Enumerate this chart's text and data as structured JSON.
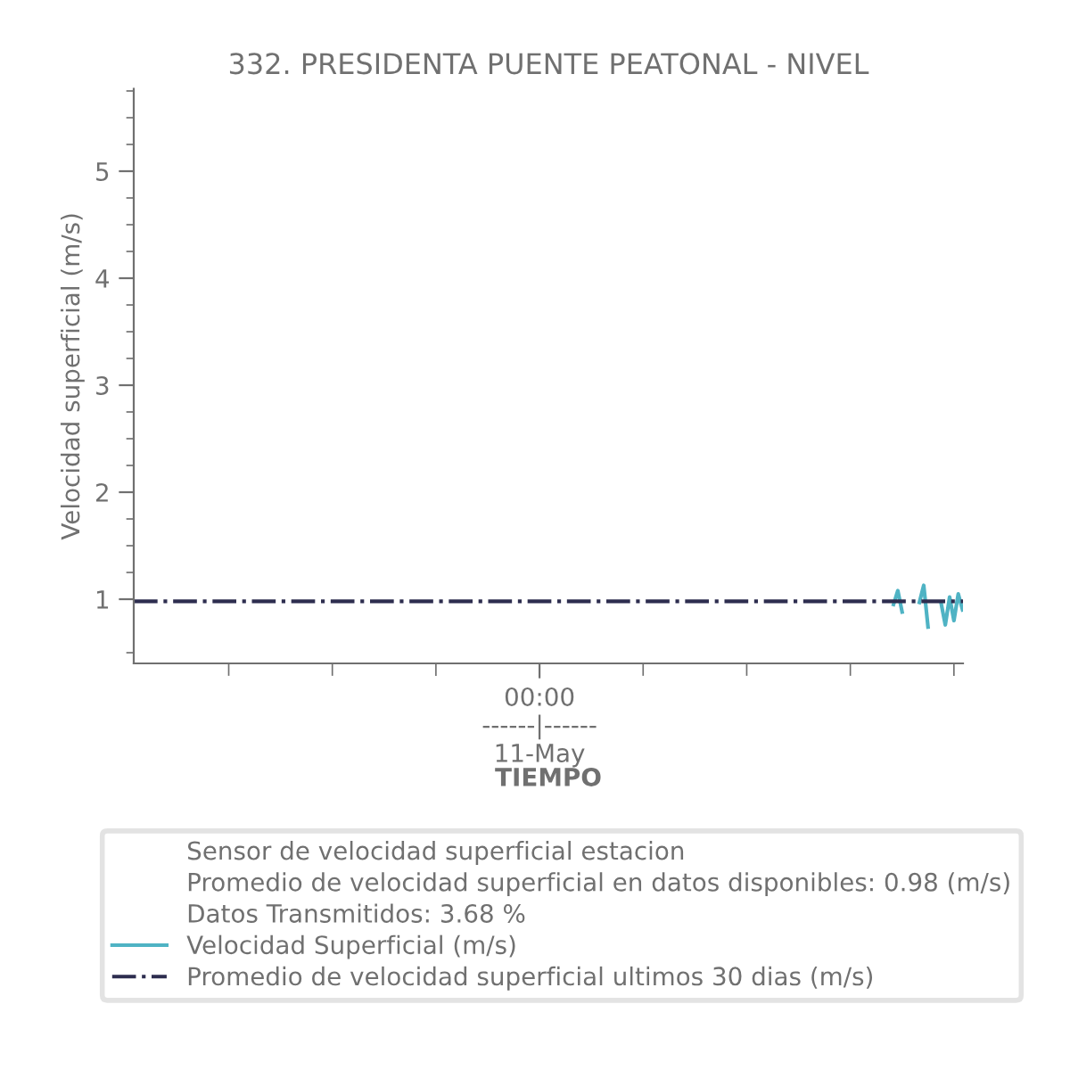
{
  "chart_data": {
    "type": "line",
    "title": "332. PRESIDENTA PUENTE PEATONAL - NIVEL",
    "xlabel": "TIEMPO",
    "ylabel": "Velocidad superficial (m/s)",
    "annotations": [
      "Sensor de velocidad superficial estacion",
      "Promedio de velocidad superficial en datos disponibles: 0.98 (m/s)",
      "Datos Transmitidos: 3.68 %"
    ],
    "categories": [
      null,
      null,
      null,
      null,
      null,
      null,
      null,
      null,
      null,
      null,
      null,
      null,
      null,
      null,
      null,
      null,
      null,
      null,
      null,
      null,
      null,
      null,
      null,
      null,
      null,
      null,
      null,
      null,
      null,
      null,
      null,
      null,
      null,
      null,
      null,
      null,
      null,
      null,
      null,
      null,
      null,
      null,
      null,
      null,
      null,
      null,
      null,
      null,
      null,
      null,
      null,
      null,
      null,
      null,
      null,
      null,
      null,
      null,
      null,
      null,
      null,
      null,
      null,
      null,
      null,
      null,
      null,
      null,
      null,
      null,
      null,
      null,
      null,
      null,
      null,
      null,
      null,
      null,
      null,
      null,
      null,
      null,
      null,
      null,
      null,
      null,
      null,
      null,
      null,
      null,
      null,
      null,
      null,
      null,
      "00:00\n------|------\n11-May",
      null,
      null,
      null,
      null,
      null,
      null,
      null,
      null,
      null,
      null,
      null,
      null,
      null,
      null,
      null,
      null,
      null,
      null,
      null,
      null,
      null,
      null,
      null,
      null,
      null,
      null,
      null,
      null,
      null,
      null,
      null,
      null,
      null,
      null,
      null,
      null,
      null,
      null,
      null,
      null,
      null,
      null,
      null,
      null,
      null,
      null,
      null,
      null,
      null,
      null,
      null,
      null,
      null,
      null,
      null,
      null,
      null,
      null,
      null,
      null,
      null,
      null,
      null,
      null,
      null,
      null,
      null,
      null,
      null,
      null,
      null,
      null,
      null,
      null,
      null,
      null,
      null,
      null,
      null,
      null,
      null,
      null,
      null,
      null,
      null,
      null,
      null,
      null,
      null,
      null,
      null,
      null,
      null,
      null,
      null,
      null,
      null,
      null
    ],
    "series": [
      {
        "name": "Velocidad Superficial (m/s)",
        "color": "#4fb3c4",
        "values": [
          null,
          null,
          null,
          null,
          null,
          null,
          null,
          null,
          null,
          null,
          null,
          null,
          null,
          null,
          null,
          null,
          null,
          null,
          null,
          null,
          null,
          null,
          null,
          null,
          null,
          null,
          null,
          null,
          null,
          null,
          null,
          null,
          null,
          null,
          null,
          null,
          null,
          null,
          null,
          null,
          null,
          null,
          null,
          null,
          null,
          null,
          null,
          null,
          null,
          null,
          null,
          null,
          null,
          null,
          null,
          null,
          null,
          null,
          null,
          null,
          null,
          null,
          null,
          null,
          null,
          null,
          null,
          null,
          null,
          null,
          null,
          null,
          null,
          null,
          null,
          null,
          null,
          null,
          null,
          null,
          null,
          null,
          null,
          null,
          null,
          null,
          null,
          null,
          null,
          null,
          null,
          null,
          null,
          null,
          null,
          null,
          null,
          null,
          null,
          null,
          null,
          null,
          null,
          null,
          null,
          null,
          null,
          null,
          null,
          null,
          null,
          null,
          null,
          null,
          null,
          null,
          null,
          null,
          null,
          null,
          null,
          null,
          null,
          null,
          null,
          null,
          null,
          null,
          null,
          null,
          null,
          null,
          null,
          null,
          null,
          null,
          null,
          null,
          null,
          null,
          null,
          null,
          null,
          null,
          null,
          null,
          null,
          null,
          null,
          null,
          null,
          null,
          null,
          null,
          null,
          null,
          null,
          null,
          null,
          null,
          null,
          null,
          null,
          null,
          null,
          null,
          null,
          null,
          null,
          null,
          null,
          null,
          null,
          null,
          null,
          null,
          0.95,
          1.08,
          0.88,
          null,
          null,
          null,
          0.97,
          1.13,
          0.74,
          null,
          null,
          0.97,
          0.76,
          1.02,
          0.8,
          1.05,
          0.9
        ]
      }
    ],
    "ref_lines": [
      {
        "axis": "y",
        "value": 0.98,
        "label": "Promedio de velocidad superficial ultimos 30 dias (m/s)",
        "color": "#2d2d4f",
        "line_style": "dashdot"
      }
    ],
    "ylim": [
      0.4,
      5.77
    ],
    "yticks": [
      {
        "value": 0.5,
        "label": null
      },
      {
        "value": 1,
        "label": "1"
      },
      {
        "value": 1.25,
        "label": null
      },
      {
        "value": 1.5,
        "label": null
      },
      {
        "value": 1.75,
        "label": null
      },
      {
        "value": 2,
        "label": "2"
      },
      {
        "value": 2.25,
        "label": null
      },
      {
        "value": 2.5,
        "label": null
      },
      {
        "value": 2.75,
        "label": null
      },
      {
        "value": 3,
        "label": "3"
      },
      {
        "value": 3.25,
        "label": null
      },
      {
        "value": 3.5,
        "label": null
      },
      {
        "value": 3.75,
        "label": null
      },
      {
        "value": 4,
        "label": "4"
      },
      {
        "value": 4.25,
        "label": null
      },
      {
        "value": 4.5,
        "label": null
      },
      {
        "value": 4.75,
        "label": null
      },
      {
        "value": 5,
        "label": "5"
      },
      {
        "value": 5.25,
        "label": null
      },
      {
        "value": 5.5,
        "label": null
      },
      {
        "value": 5.75,
        "label": null
      }
    ],
    "legend": "bottom",
    "line_style": "solid"
  }
}
